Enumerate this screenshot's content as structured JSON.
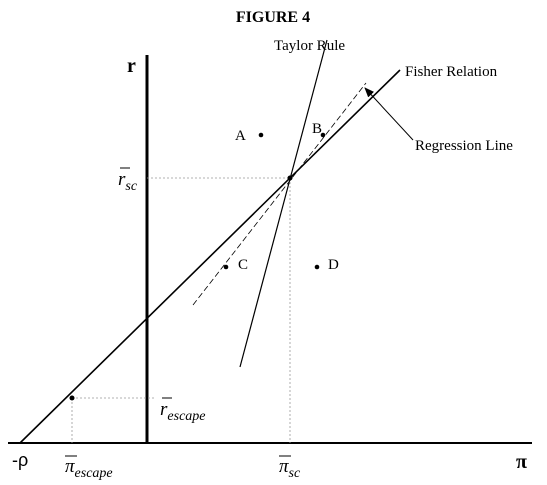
{
  "title": "FIGURE 4",
  "axes": {
    "y_label": "r",
    "x_label": "π",
    "origin_label": "-ρ"
  },
  "lines": {
    "taylor": "Taylor Rule",
    "fisher": "Fisher Relation",
    "regression": "Regression Line"
  },
  "points": [
    "A",
    "B",
    "C",
    "D"
  ],
  "markers": {
    "r_sc": {
      "symbol": "r",
      "subscript": "sc"
    },
    "pi_sc": {
      "symbol": "π",
      "subscript": "sc"
    },
    "r_escape": {
      "symbol": "r",
      "subscript": "escape"
    },
    "pi_escape": {
      "symbol": "π",
      "subscript": "escape"
    }
  }
}
